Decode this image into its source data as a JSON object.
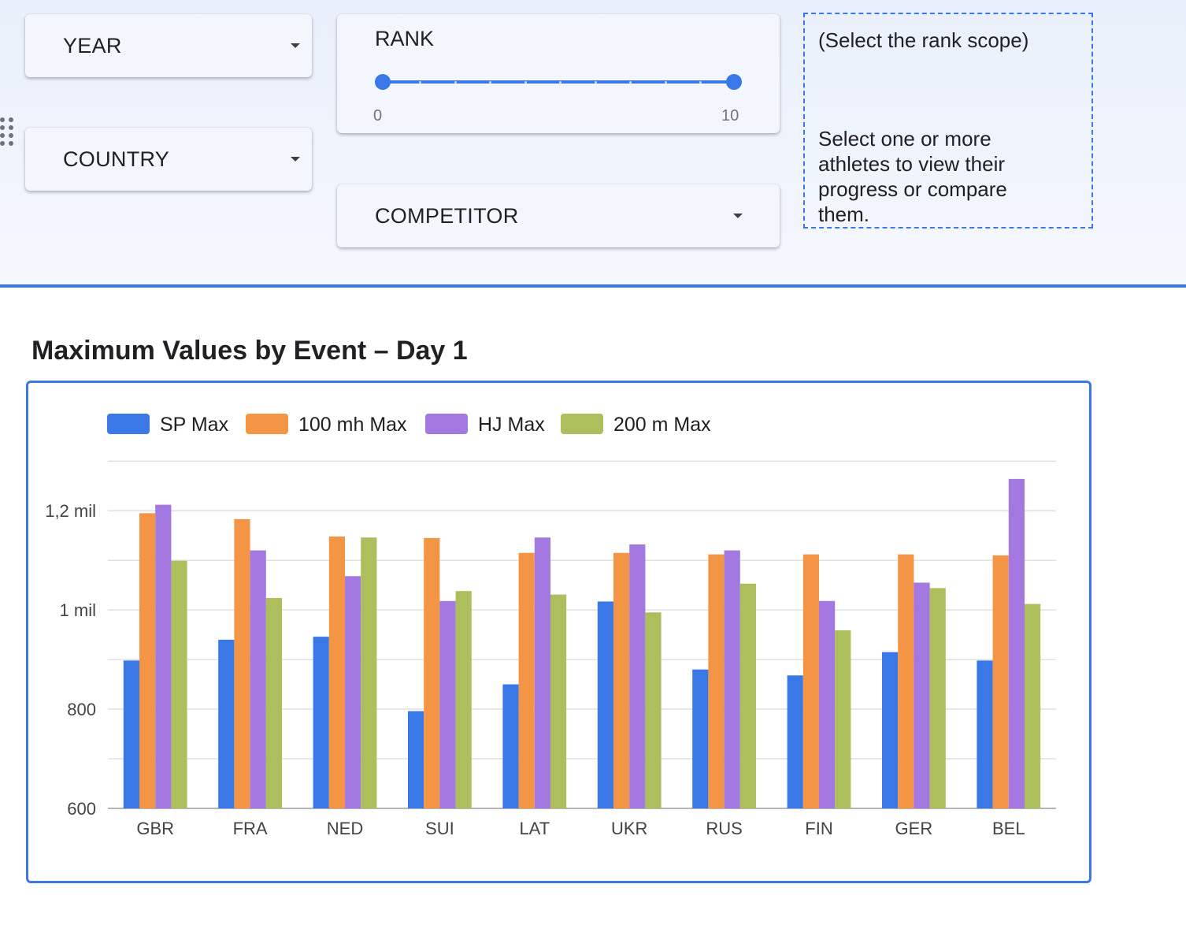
{
  "filters": {
    "year": {
      "label": "YEAR"
    },
    "country": {
      "label": "COUNTRY"
    },
    "competitor": {
      "label": "COMPETITOR"
    },
    "rank": {
      "title": "RANK",
      "min": "0",
      "max": "10",
      "selected_low": 0,
      "selected_high": 10
    }
  },
  "help": {
    "title": "(Select the rank scope)",
    "text": "Select one or more athletes to view their progress or compare them."
  },
  "colors": {
    "accent": "#3b78e7",
    "sp": "#3b78e7",
    "mh100": "#f39545",
    "hj": "#a378e0",
    "m200": "#adbe5d"
  },
  "icons": {
    "dropdown": "chevron-down-icon",
    "drag": "drag-handle-icon"
  },
  "chart_data": {
    "type": "bar",
    "title": "Maximum Values by Event – Day 1",
    "categories": [
      "GBR",
      "FRA",
      "NED",
      "SUI",
      "LAT",
      "UKR",
      "RUS",
      "FIN",
      "GER",
      "BEL"
    ],
    "series": [
      {
        "name": "SP Max",
        "color": "#3b78e7",
        "values": [
          898,
          940,
          946,
          796,
          850,
          1017,
          880,
          868,
          915,
          898
        ]
      },
      {
        "name": "100 mh Max",
        "color": "#f39545",
        "values": [
          1195,
          1183,
          1148,
          1145,
          1115,
          1115,
          1112,
          1112,
          1112,
          1110
        ]
      },
      {
        "name": "HJ Max",
        "color": "#a378e0",
        "values": [
          1212,
          1120,
          1068,
          1018,
          1146,
          1132,
          1120,
          1018,
          1055,
          1264
        ]
      },
      {
        "name": "200 m Max",
        "color": "#adbe5d",
        "values": [
          1099,
          1024,
          1146,
          1038,
          1031,
          995,
          1053,
          959,
          1044,
          1012
        ]
      }
    ],
    "y_ticks": [
      {
        "value": 600,
        "label": "600"
      },
      {
        "value": 800,
        "label": "800"
      },
      {
        "value": 1000,
        "label": "1 mil"
      },
      {
        "value": 1200,
        "label": "1,2 mil"
      }
    ],
    "ylim": [
      600,
      1300
    ],
    "grid": true,
    "legend_position": "top"
  }
}
